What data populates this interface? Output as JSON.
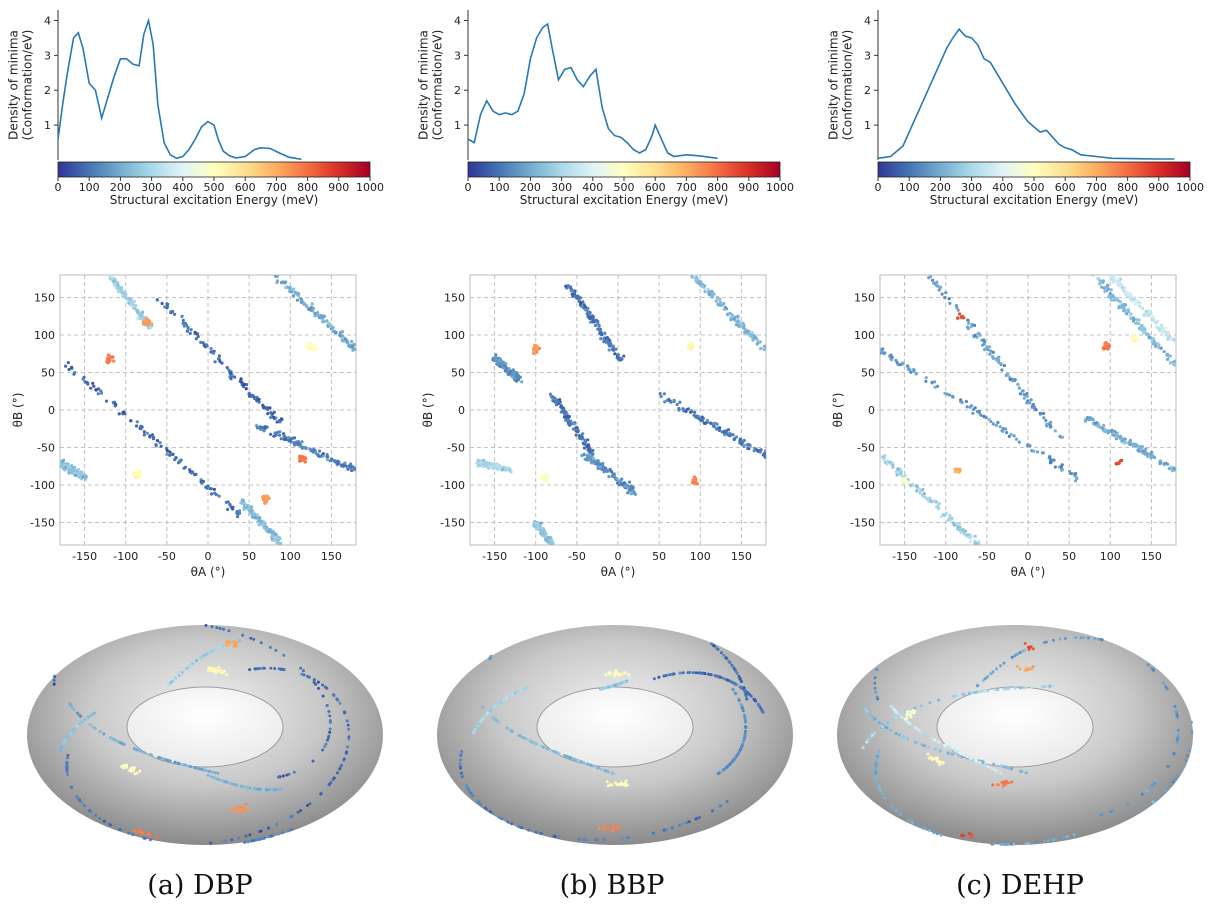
{
  "captions": [
    "(a) DBP",
    "(b) BBP",
    "(c) DEHP"
  ],
  "colormap": [
    "#313695",
    "#4575b4",
    "#74add1",
    "#abd9e9",
    "#e0f3f8",
    "#ffffbf",
    "#fee090",
    "#fdae61",
    "#f46d43",
    "#d73027",
    "#a50026"
  ],
  "chart_data": [
    {
      "panel": "DBP",
      "type": "line",
      "ylabel": "Density of minima (Conformation/eV)",
      "xlabel": "Structural excitation Energy (meV)",
      "x_ticks": [
        "0",
        "100",
        "200",
        "300",
        "400",
        "500",
        "600",
        "700",
        "800",
        "900",
        "1000"
      ],
      "y_ticks": [
        "1",
        "2",
        "3",
        "4"
      ],
      "xlim": [
        0,
        1000
      ],
      "ylim": [
        0,
        4.3
      ],
      "x": [
        0,
        15,
        30,
        50,
        65,
        80,
        100,
        120,
        140,
        160,
        180,
        200,
        220,
        240,
        260,
        275,
        290,
        305,
        320,
        340,
        360,
        380,
        400,
        420,
        440,
        460,
        480,
        500,
        515,
        530,
        550,
        570,
        600,
        630,
        650,
        680,
        710,
        740,
        780
      ],
      "y": [
        0.6,
        1.6,
        2.5,
        3.5,
        3.65,
        3.2,
        2.2,
        2.0,
        1.2,
        1.8,
        2.4,
        2.9,
        2.9,
        2.75,
        2.7,
        3.6,
        4.0,
        3.3,
        1.6,
        0.5,
        0.15,
        0.05,
        0.1,
        0.3,
        0.6,
        0.95,
        1.1,
        1.0,
        0.55,
        0.25,
        0.12,
        0.06,
        0.1,
        0.3,
        0.35,
        0.33,
        0.2,
        0.08,
        0.02
      ]
    },
    {
      "panel": "BBP",
      "type": "line",
      "ylabel": "Density of minima (Conformation/eV)",
      "xlabel": "Structural excitation Energy (meV)",
      "x_ticks": [
        "0",
        "100",
        "200",
        "300",
        "400",
        "500",
        "600",
        "700",
        "800",
        "900",
        "1000"
      ],
      "y_ticks": [
        "1",
        "2",
        "3",
        "4"
      ],
      "xlim": [
        0,
        1000
      ],
      "ylim": [
        0,
        4.3
      ],
      "x": [
        0,
        20,
        40,
        60,
        80,
        100,
        120,
        140,
        160,
        180,
        200,
        220,
        240,
        255,
        270,
        290,
        310,
        330,
        350,
        370,
        390,
        410,
        430,
        450,
        470,
        490,
        510,
        530,
        550,
        570,
        590,
        600,
        620,
        640,
        660,
        700,
        740,
        800
      ],
      "y": [
        0.6,
        0.5,
        1.3,
        1.7,
        1.4,
        1.3,
        1.35,
        1.3,
        1.4,
        1.9,
        2.9,
        3.5,
        3.8,
        3.9,
        3.2,
        2.3,
        2.6,
        2.65,
        2.3,
        2.1,
        2.4,
        2.6,
        1.5,
        0.9,
        0.7,
        0.65,
        0.5,
        0.3,
        0.2,
        0.3,
        0.7,
        1.0,
        0.6,
        0.2,
        0.1,
        0.15,
        0.12,
        0.05
      ]
    },
    {
      "panel": "DEHP",
      "type": "line",
      "ylabel": "Density of minima (Conformation/eV)",
      "xlabel": "Structural excitation Energy (meV)",
      "x_ticks": [
        "0",
        "100",
        "200",
        "300",
        "400",
        "500",
        "600",
        "700",
        "800",
        "900",
        "1000"
      ],
      "y_ticks": [
        "1",
        "2",
        "3",
        "4"
      ],
      "xlim": [
        0,
        1000
      ],
      "ylim": [
        0,
        4.3
      ],
      "x": [
        0,
        40,
        80,
        110,
        140,
        170,
        200,
        220,
        240,
        260,
        280,
        300,
        320,
        340,
        360,
        380,
        400,
        420,
        440,
        460,
        480,
        500,
        520,
        540,
        560,
        580,
        600,
        620,
        650,
        700,
        750,
        800,
        900,
        950
      ],
      "y": [
        0.05,
        0.1,
        0.4,
        1.0,
        1.6,
        2.2,
        2.8,
        3.2,
        3.5,
        3.75,
        3.55,
        3.5,
        3.3,
        2.9,
        2.8,
        2.5,
        2.2,
        1.9,
        1.6,
        1.35,
        1.1,
        0.95,
        0.8,
        0.85,
        0.65,
        0.45,
        0.35,
        0.3,
        0.15,
        0.1,
        0.05,
        0.04,
        0.03,
        0.03
      ]
    },
    {
      "panel": "DBP",
      "type": "scatter",
      "xlabel": "θA (°)",
      "ylabel": "θB (°)",
      "ticks": [
        "-150",
        "-100",
        "-50",
        "0",
        "50",
        "100",
        "150"
      ],
      "xlim": [
        -180,
        180
      ],
      "ylim": [
        -180,
        180
      ],
      "grid": true,
      "bands": [
        {
          "from": [
            -60,
            150
          ],
          "to": [
            90,
            -20
          ],
          "energy": 90
        },
        {
          "from": [
            -170,
            60
          ],
          "to": [
            40,
            -140
          ],
          "energy": 90
        },
        {
          "from": [
            80,
            180
          ],
          "to": [
            180,
            80
          ],
          "energy": 200
        },
        {
          "from": [
            60,
            -20
          ],
          "to": [
            180,
            -80
          ],
          "energy": 120
        },
        {
          "from": [
            -120,
            180
          ],
          "to": [
            -70,
            110
          ],
          "energy": 280
        },
        {
          "from": [
            -180,
            -70
          ],
          "to": [
            -150,
            -90
          ],
          "energy": 250
        },
        {
          "from": [
            40,
            -120
          ],
          "to": [
            90,
            -180
          ],
          "energy": 230
        }
      ],
      "clusters": [
        {
          "x": -120,
          "y": 68,
          "energy": 770,
          "n": 22
        },
        {
          "x": -75,
          "y": 118,
          "energy": 720,
          "n": 18
        },
        {
          "x": 115,
          "y": -65,
          "energy": 780,
          "n": 14
        },
        {
          "x": 70,
          "y": -118,
          "energy": 740,
          "n": 20
        },
        {
          "x": -85,
          "y": -85,
          "energy": 520,
          "n": 24
        },
        {
          "x": 125,
          "y": 85,
          "energy": 500,
          "n": 22
        }
      ]
    },
    {
      "panel": "BBP",
      "type": "scatter",
      "xlabel": "θA (°)",
      "ylabel": "θB (°)",
      "ticks": [
        "-150",
        "-100",
        "-50",
        "0",
        "50",
        "100",
        "150"
      ],
      "xlim": [
        -180,
        180
      ],
      "ylim": [
        -180,
        180
      ],
      "grid": true,
      "bands": [
        {
          "from": [
            -60,
            165
          ],
          "to": [
            5,
            65
          ],
          "energy": 100
        },
        {
          "from": [
            -150,
            70
          ],
          "to": [
            -120,
            40
          ],
          "energy": 150
        },
        {
          "from": [
            -80,
            20
          ],
          "to": [
            -30,
            -60
          ],
          "energy": 100
        },
        {
          "from": [
            -40,
            -60
          ],
          "to": [
            20,
            -110
          ],
          "energy": 150
        },
        {
          "from": [
            50,
            20
          ],
          "to": [
            180,
            -60
          ],
          "energy": 120
        },
        {
          "from": [
            90,
            180
          ],
          "to": [
            180,
            80
          ],
          "energy": 230
        },
        {
          "from": [
            -170,
            -70
          ],
          "to": [
            -130,
            -80
          ],
          "energy": 300
        },
        {
          "from": [
            -100,
            -150
          ],
          "to": [
            -80,
            -180
          ],
          "energy": 260
        }
      ],
      "clusters": [
        {
          "x": -100,
          "y": 82,
          "energy": 740,
          "n": 14
        },
        {
          "x": 92,
          "y": -95,
          "energy": 760,
          "n": 12
        },
        {
          "x": 88,
          "y": 85,
          "energy": 520,
          "n": 18
        },
        {
          "x": -90,
          "y": -90,
          "energy": 500,
          "n": 18
        }
      ]
    },
    {
      "panel": "DEHP",
      "type": "scatter",
      "xlabel": "θA (°)",
      "ylabel": "θB (°)",
      "ticks": [
        "-150",
        "-100",
        "-50",
        "0",
        "50",
        "100",
        "150"
      ],
      "xlim": [
        -180,
        180
      ],
      "ylim": [
        -180,
        180
      ],
      "grid": true,
      "bands": [
        {
          "from": [
            -120,
            180
          ],
          "to": [
            40,
            -40
          ],
          "energy": 180
        },
        {
          "from": [
            -180,
            80
          ],
          "to": [
            60,
            -90
          ],
          "energy": 170
        },
        {
          "from": [
            80,
            180
          ],
          "to": [
            180,
            60
          ],
          "energy": 230
        },
        {
          "from": [
            70,
            -10
          ],
          "to": [
            180,
            -80
          ],
          "energy": 200
        },
        {
          "from": [
            -180,
            -60
          ],
          "to": [
            -60,
            -180
          ],
          "energy": 280
        },
        {
          "from": [
            100,
            180
          ],
          "to": [
            180,
            90
          ],
          "energy": 350
        }
      ],
      "clusters": [
        {
          "x": 95,
          "y": 85,
          "energy": 780,
          "n": 16
        },
        {
          "x": 130,
          "y": 95,
          "energy": 520,
          "n": 18
        },
        {
          "x": -85,
          "y": -80,
          "energy": 700,
          "n": 10
        },
        {
          "x": -150,
          "y": -95,
          "energy": 480,
          "n": 14
        },
        {
          "x": 110,
          "y": -70,
          "energy": 860,
          "n": 6
        },
        {
          "x": -80,
          "y": 125,
          "energy": 850,
          "n": 5
        }
      ]
    }
  ]
}
